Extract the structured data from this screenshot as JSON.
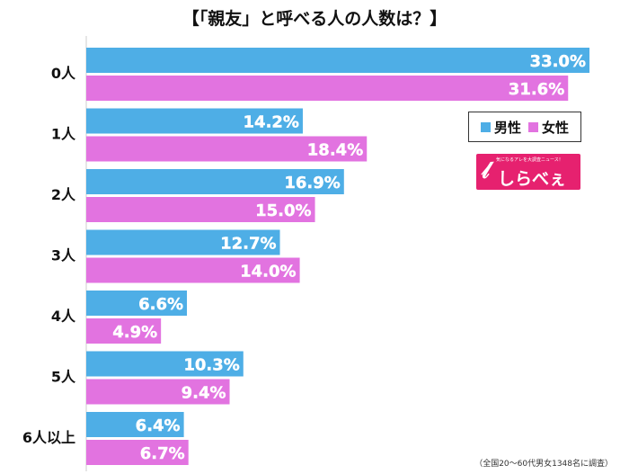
{
  "title": "【「親友」と呼べる人の人数は？】",
  "footnote": "（全国20〜60代男女1348名に調査）",
  "legend": [
    {
      "label": "男性",
      "color": "#4eaee6"
    },
    {
      "label": "女性",
      "color": "#e273e0"
    }
  ],
  "logo": {
    "tagline": "気になるアレを大調査ニュース！",
    "text": "しらべぇ",
    "color": "#e6216f"
  },
  "chart_data": {
    "type": "bar",
    "orientation": "horizontal",
    "title": "【「親友」と呼べる人の人数は？】",
    "categories": [
      "0人",
      "1人",
      "2人",
      "3人",
      "4人",
      "5人",
      "6人以上"
    ],
    "series": [
      {
        "name": "男性",
        "color": "#4eaee6",
        "values": [
          33.0,
          14.2,
          16.9,
          12.7,
          6.6,
          10.3,
          6.4
        ],
        "labels": [
          "33.0%",
          "14.2%",
          "16.9%",
          "12.7%",
          "6.6%",
          "10.3%",
          "6.4%"
        ]
      },
      {
        "name": "女性",
        "color": "#e273e0",
        "values": [
          31.6,
          18.4,
          15.0,
          14.0,
          4.9,
          9.4,
          6.7
        ],
        "labels": [
          "31.6%",
          "18.4%",
          "15.0%",
          "14.0%",
          "4.9%",
          "9.4%",
          "6.7%"
        ]
      }
    ],
    "xlim": [
      0,
      35
    ],
    "grid": false,
    "legend_position": "right"
  }
}
